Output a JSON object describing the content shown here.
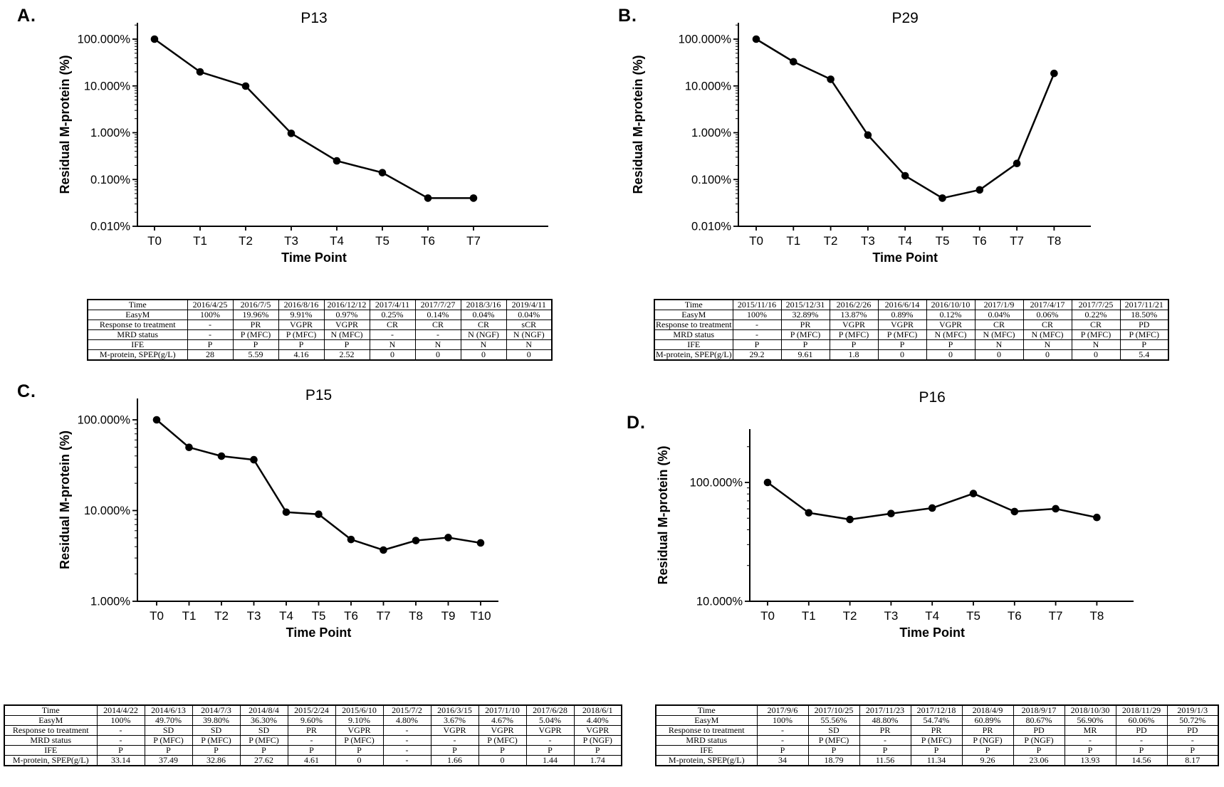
{
  "chart_data": [
    {
      "panel_label": "A.",
      "type": "line",
      "title": "P13",
      "xlabel": "Time Point",
      "ylabel": "Residual M-protein (%)",
      "categories": [
        "T0",
        "T1",
        "T2",
        "T3",
        "T4",
        "T5",
        "T6",
        "T7"
      ],
      "values": [
        100,
        19.96,
        9.91,
        0.97,
        0.25,
        0.14,
        0.04,
        0.04
      ],
      "y_scale": "log",
      "ylim": [
        0.01,
        100
      ],
      "y_tick_values": [
        100,
        10,
        1,
        0.1,
        0.01
      ],
      "y_tick_labels": [
        "100.000%",
        "10.000%",
        "1.000%",
        "0.100%",
        "0.010%"
      ],
      "grid": false,
      "legend": null,
      "marker": "circle",
      "line_color": "#000000",
      "table": {
        "rows": [
          {
            "label": "Time",
            "values": [
              "2016/4/25",
              "2016/7/5",
              "2016/8/16",
              "2016/12/12",
              "2017/4/11",
              "2017/7/27",
              "2018/3/16",
              "2019/4/11"
            ]
          },
          {
            "label": "EasyM",
            "values": [
              "100%",
              "19.96%",
              "9.91%",
              "0.97%",
              "0.25%",
              "0.14%",
              "0.04%",
              "0.04%"
            ]
          },
          {
            "label": "Response to treatment",
            "values": [
              "-",
              "PR",
              "VGPR",
              "VGPR",
              "CR",
              "CR",
              "CR",
              "sCR"
            ]
          },
          {
            "label": "MRD status",
            "values": [
              "-",
              "P (MFC)",
              "P (MFC)",
              "N (MFC)",
              "-",
              "-",
              "N (NGF)",
              "N (NGF)"
            ]
          },
          {
            "label": "IFE",
            "values": [
              "P",
              "P",
              "P",
              "P",
              "N",
              "N",
              "N",
              "N"
            ]
          },
          {
            "label": "M-protein, SPEP(g/L)",
            "values": [
              "28",
              "5.59",
              "4.16",
              "2.52",
              "0",
              "0",
              "0",
              "0"
            ]
          }
        ]
      }
    },
    {
      "panel_label": "B.",
      "type": "line",
      "title": "P29",
      "xlabel": "Time Point",
      "ylabel": "Residual M-protein (%)",
      "categories": [
        "T0",
        "T1",
        "T2",
        "T3",
        "T4",
        "T5",
        "T6",
        "T7",
        "T8"
      ],
      "values": [
        100,
        32.89,
        13.87,
        0.89,
        0.12,
        0.04,
        0.06,
        0.22,
        18.5
      ],
      "y_scale": "log",
      "ylim": [
        0.01,
        100
      ],
      "y_tick_values": [
        100,
        10,
        1,
        0.1,
        0.01
      ],
      "y_tick_labels": [
        "100.000%",
        "10.000%",
        "1.000%",
        "0.100%",
        "0.010%"
      ],
      "grid": false,
      "legend": null,
      "marker": "circle",
      "line_color": "#000000",
      "table": {
        "rows": [
          {
            "label": "Time",
            "values": [
              "2015/11/16",
              "2015/12/31",
              "2016/2/26",
              "2016/6/14",
              "2016/10/10",
              "2017/1/9",
              "2017/4/17",
              "2017/7/25",
              "2017/11/21"
            ]
          },
          {
            "label": "EasyM",
            "values": [
              "100%",
              "32.89%",
              "13.87%",
              "0.89%",
              "0.12%",
              "0.04%",
              "0.06%",
              "0.22%",
              "18.50%"
            ]
          },
          {
            "label": "Response to treatment",
            "values": [
              "-",
              "PR",
              "VGPR",
              "VGPR",
              "VGPR",
              "CR",
              "CR",
              "CR",
              "PD"
            ]
          },
          {
            "label": "MRD status",
            "values": [
              "-",
              "P (MFC)",
              "P (MFC)",
              "P (MFC)",
              "N (MFC)",
              "N (MFC)",
              "N (MFC)",
              "P (MFC)",
              "P (MFC)"
            ]
          },
          {
            "label": "IFE",
            "values": [
              "P",
              "P",
              "P",
              "P",
              "P",
              "N",
              "N",
              "N",
              "P"
            ]
          },
          {
            "label": "M-protein, SPEP(g/L)",
            "values": [
              "29.2",
              "9.61",
              "1.8",
              "0",
              "0",
              "0",
              "0",
              "0",
              "5.4"
            ]
          }
        ]
      }
    },
    {
      "panel_label": "C.",
      "type": "line",
      "title": "P15",
      "xlabel": "Time Point",
      "ylabel": "Residual M-protein (%)",
      "categories": [
        "T0",
        "T1",
        "T2",
        "T3",
        "T4",
        "T5",
        "T6",
        "T7",
        "T8",
        "T9",
        "T10"
      ],
      "values": [
        100,
        49.7,
        39.8,
        36.3,
        9.6,
        9.1,
        4.8,
        3.67,
        4.67,
        5.04,
        4.4
      ],
      "y_scale": "log",
      "ylim": [
        1,
        100
      ],
      "y_tick_values": [
        100,
        10,
        1
      ],
      "y_tick_labels": [
        "100.000%",
        "10.000%",
        "1.000%"
      ],
      "grid": false,
      "legend": null,
      "marker": "circle",
      "line_color": "#000000",
      "table": {
        "rows": [
          {
            "label": "Time",
            "values": [
              "2014/4/22",
              "2014/6/13",
              "2014/7/3",
              "2014/8/4",
              "2015/2/24",
              "2015/6/10",
              "2015/7/2",
              "2016/3/15",
              "2017/1/10",
              "2017/6/28",
              "2018/6/1"
            ]
          },
          {
            "label": "EasyM",
            "values": [
              "100%",
              "49.70%",
              "39.80%",
              "36.30%",
              "9.60%",
              "9.10%",
              "4.80%",
              "3.67%",
              "4.67%",
              "5.04%",
              "4.40%"
            ]
          },
          {
            "label": "Response to treatment",
            "values": [
              "-",
              "SD",
              "SD",
              "SD",
              "PR",
              "VGPR",
              "-",
              "VGPR",
              "VGPR",
              "VGPR",
              "VGPR"
            ]
          },
          {
            "label": "MRD status",
            "values": [
              "-",
              "P (MFC)",
              "P (MFC)",
              "P (MFC)",
              "-",
              "P (MFC)",
              "-",
              "-",
              "P (MFC)",
              "-",
              "P (NGF)"
            ]
          },
          {
            "label": "IFE",
            "values": [
              "P",
              "P",
              "P",
              "P",
              "P",
              "P",
              "-",
              "P",
              "P",
              "P",
              "P"
            ]
          },
          {
            "label": "M-protein, SPEP(g/L)",
            "values": [
              "33.14",
              "37.49",
              "32.86",
              "27.62",
              "4.61",
              "0",
              "-",
              "1.66",
              "0",
              "1.44",
              "1.74"
            ]
          }
        ]
      }
    },
    {
      "panel_label": "D.",
      "type": "line",
      "title": "P16",
      "xlabel": "Time Point",
      "ylabel": "Residual M-protein (%)",
      "categories": [
        "T0",
        "T1",
        "T2",
        "T3",
        "T4",
        "T5",
        "T6",
        "T7",
        "T8"
      ],
      "values": [
        100,
        55.56,
        48.8,
        54.74,
        60.89,
        80.67,
        56.9,
        60.06,
        50.72
      ],
      "y_scale": "log",
      "ylim": [
        10,
        100
      ],
      "y_tick_values": [
        100,
        10
      ],
      "y_tick_labels": [
        "100.000%",
        "10.000%"
      ],
      "grid": false,
      "legend": null,
      "marker": "circle",
      "line_color": "#000000",
      "table": {
        "rows": [
          {
            "label": "Time",
            "values": [
              "2017/9/6",
              "2017/10/25",
              "2017/11/23",
              "2017/12/18",
              "2018/4/9",
              "2018/9/17",
              "2018/10/30",
              "2018/11/29",
              "2019/1/3"
            ]
          },
          {
            "label": "EasyM",
            "values": [
              "100%",
              "55.56%",
              "48.80%",
              "54.74%",
              "60.89%",
              "80.67%",
              "56.90%",
              "60.06%",
              "50.72%"
            ]
          },
          {
            "label": "Response to treatment",
            "values": [
              "-",
              "SD",
              "PR",
              "PR",
              "PR",
              "PD",
              "MR",
              "PD",
              "PD"
            ]
          },
          {
            "label": "MRD status",
            "values": [
              "-",
              "P (MFC)",
              "-",
              "P (MFC)",
              "P (NGF)",
              "P (NGF)",
              "-",
              "-",
              "-"
            ]
          },
          {
            "label": "IFE",
            "values": [
              "P",
              "P",
              "P",
              "P",
              "P",
              "P",
              "P",
              "P",
              "P"
            ]
          },
          {
            "label": "M-protein, SPEP(g/L)",
            "values": [
              "34",
              "18.79",
              "11.56",
              "11.34",
              "9.26",
              "23.06",
              "13.93",
              "14.56",
              "8.17"
            ]
          }
        ]
      }
    }
  ]
}
